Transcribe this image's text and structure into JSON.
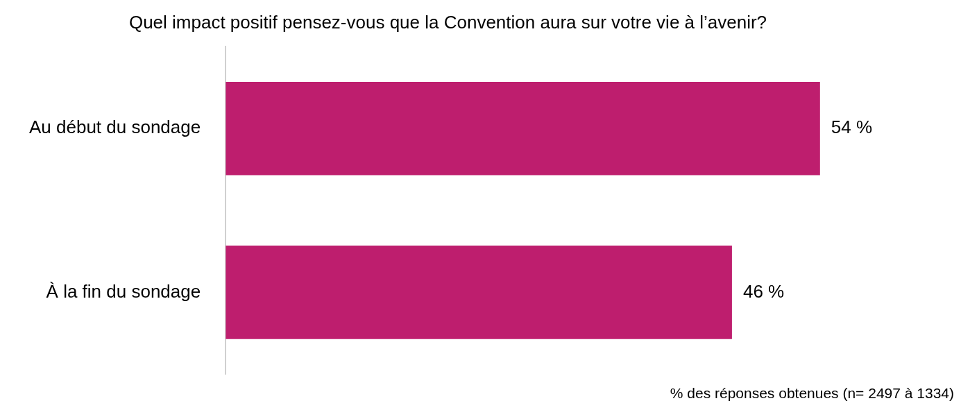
{
  "chart_data": {
    "type": "bar",
    "orientation": "horizontal",
    "title": "Quel impact positif pensez-vous que la Convention aura sur votre vie à l’avenir?",
    "categories": [
      "Au début du sondage",
      "À la fin du sondage"
    ],
    "values": [
      54,
      46
    ],
    "color": "#be1e6e",
    "value_labels": [
      "54 %",
      "46 %"
    ],
    "tick_labels": "y",
    "grid": false,
    "legend": false,
    "annotations": [
      "% des réponses obtenues (n= 2497 à 1334)"
    ]
  }
}
